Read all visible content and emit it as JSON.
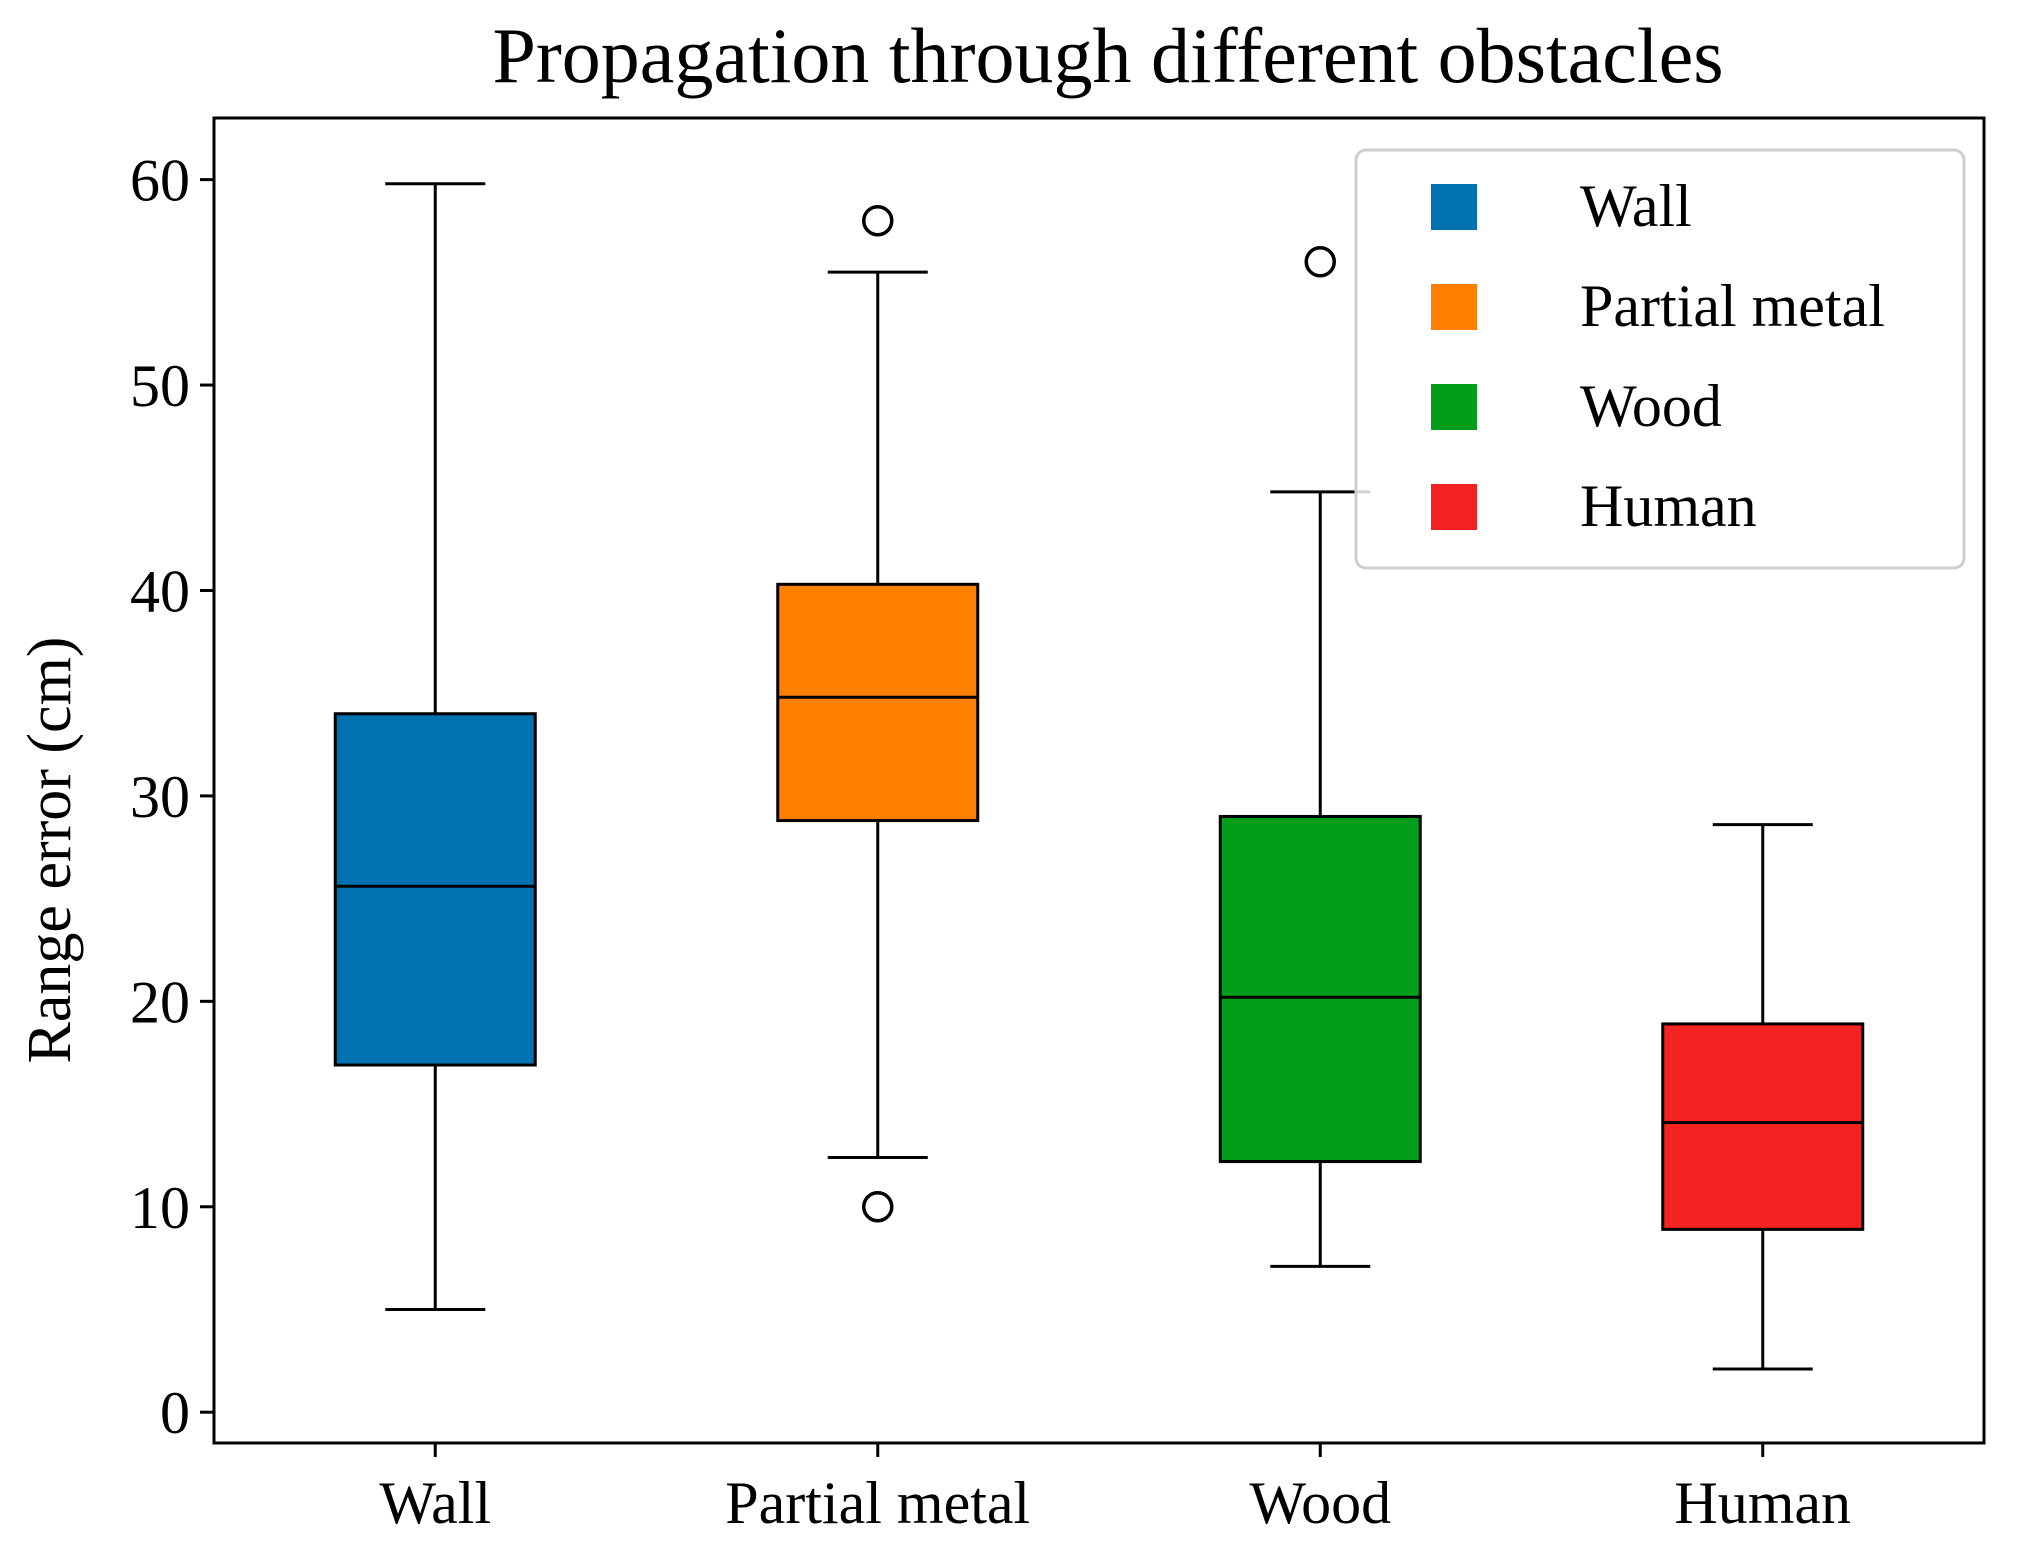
{
  "chart_data": {
    "type": "box",
    "title": "Propagation through different obstacles",
    "xlabel": "",
    "ylabel": "Range error (cm)",
    "ylim": [
      -1.5,
      63
    ],
    "yticks": [
      0,
      10,
      20,
      30,
      40,
      50,
      60
    ],
    "ytick_labels": [
      "0",
      "10",
      "20",
      "30",
      "40",
      "50",
      "60"
    ],
    "categories": [
      "Wall",
      "Partial metal",
      "Wood",
      "Human"
    ],
    "series": [
      {
        "name": "Wall",
        "color": "#0072b2",
        "whisker_low": 5,
        "q1": 16.9,
        "median": 25.6,
        "q3": 34,
        "whisker_high": 59.8,
        "outliers": []
      },
      {
        "name": "Partial metal",
        "color": "#ff7f00",
        "whisker_low": 12.4,
        "q1": 28.8,
        "median": 34.8,
        "q3": 40.3,
        "whisker_high": 55.5,
        "outliers": [
          58,
          10
        ]
      },
      {
        "name": "Wood",
        "color": "#009e1a",
        "whisker_low": 7.1,
        "q1": 12.2,
        "median": 20.2,
        "q3": 29,
        "whisker_high": 44.8,
        "outliers": [
          56
        ]
      },
      {
        "name": "Human",
        "color": "#f52222",
        "whisker_low": 2.1,
        "q1": 8.9,
        "median": 14.1,
        "q3": 18.9,
        "whisker_high": 28.6,
        "outliers": []
      }
    ],
    "legend": {
      "location": "top-right",
      "entries": [
        "Wall",
        "Partial metal",
        "Wood",
        "Human"
      ]
    }
  }
}
